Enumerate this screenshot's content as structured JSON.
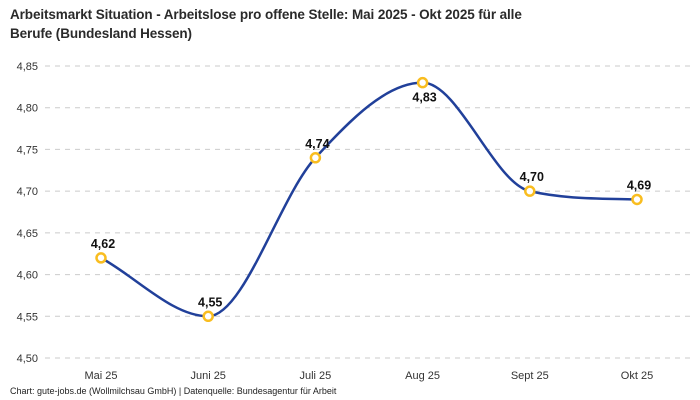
{
  "header": {
    "title_lines": [
      "Arbeitsmarkt Situation - Arbeitslose pro offene Stelle: Mai 2025 - Okt 2025 für alle",
      "Berufe (Bundesland Hessen)"
    ]
  },
  "footer": {
    "credit": "Chart: gute-jobs.de (Wollmilchsau GmbH) | Datenquelle: Bundesagentur für Arbeit"
  },
  "chart_data": {
    "type": "line",
    "title": "Arbeitsmarkt Situation - Arbeitslose pro offene Stelle: Mai 2025 - Okt 2025 für alle Berufe (Bundesland Hessen)",
    "categories": [
      "Mai 25",
      "Juni 25",
      "Juli 25",
      "Aug 25",
      "Sept 25",
      "Okt 25"
    ],
    "values": [
      4.62,
      4.55,
      4.74,
      4.83,
      4.7,
      4.69
    ],
    "point_labels": [
      "4,62",
      "4,55",
      "4,74",
      "4,83",
      "4,70",
      "4,69"
    ],
    "label_positions": [
      "above",
      "above",
      "above",
      "below",
      "above",
      "above"
    ],
    "series_name": "Arbeitslose pro offene Stelle",
    "xlabel": "",
    "ylabel": "",
    "ylim": [
      4.5,
      4.85
    ],
    "yticks": [
      4.5,
      4.55,
      4.6,
      4.65,
      4.7,
      4.75,
      4.8,
      4.85
    ],
    "ytick_labels": [
      "4,50",
      "4,55",
      "4,60",
      "4,65",
      "4,70",
      "4,75",
      "4,80",
      "4,85"
    ],
    "grid": "horizontal-dashed",
    "legend": "none",
    "curve": "smooth-monotone",
    "colors": {
      "line": "#21409a",
      "marker_stroke": "#f9bd1f",
      "marker_fill": "#ffffff",
      "grid": "#cbcbcb",
      "axis_text": "#333333",
      "point_label_text": "#111111"
    }
  }
}
